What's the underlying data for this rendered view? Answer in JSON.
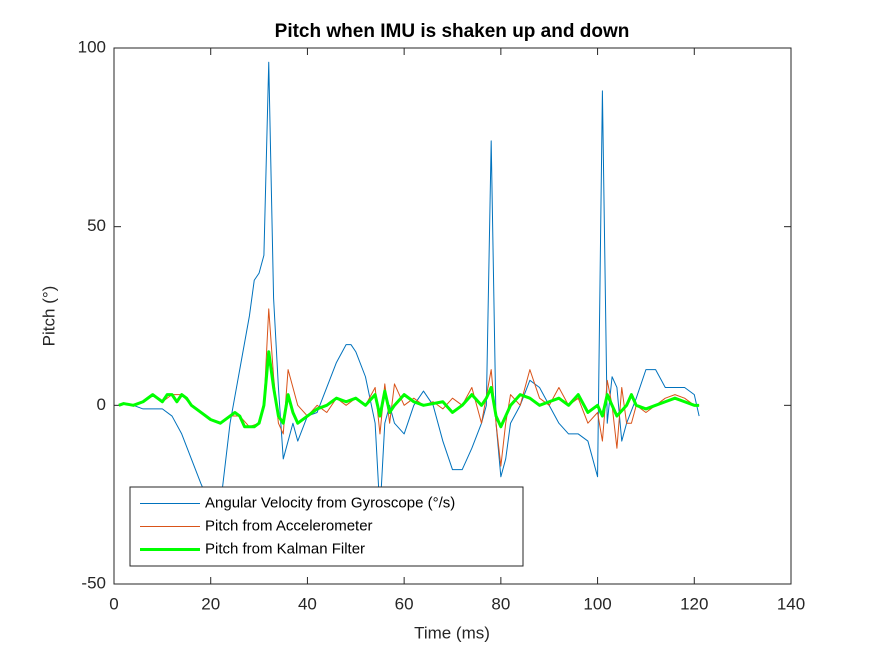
{
  "chart_data": {
    "type": "line",
    "title": "Pitch when IMU is shaken up and down",
    "x_label": "Time (ms)",
    "y_label": "Pitch (°)",
    "xlim": [
      0,
      140
    ],
    "xticks": [
      0,
      20,
      40,
      60,
      80,
      100,
      120,
      140
    ],
    "ylim": [
      -50,
      100
    ],
    "yticks": [
      -50,
      0,
      50,
      100
    ],
    "grid": false,
    "legend": "lower left",
    "series": [
      {
        "name": "Angular Velocity from Gyroscope (°/s)",
        "color": "#0072BD",
        "width": 1,
        "x": [
          1,
          2,
          4,
          6,
          8,
          10,
          12,
          14,
          16,
          18,
          20,
          21,
          22,
          24,
          26,
          28,
          29,
          30,
          31,
          32,
          33,
          34,
          35,
          36,
          37,
          38,
          40,
          42,
          44,
          46,
          48,
          49,
          50,
          52,
          54,
          55,
          56,
          57,
          58,
          60,
          62,
          64,
          66,
          68,
          70,
          72,
          74,
          76,
          77,
          78,
          79,
          80,
          81,
          82,
          84,
          86,
          88,
          90,
          92,
          94,
          96,
          98,
          100,
          101,
          102,
          103,
          104,
          105,
          106,
          108,
          110,
          112,
          114,
          116,
          118,
          120,
          121
        ],
        "values": [
          0,
          0.5,
          0,
          -1,
          -1,
          -1,
          -3,
          -8,
          -15,
          -22,
          -28,
          -35,
          -28,
          -5,
          10,
          25,
          35,
          37,
          42,
          96,
          30,
          5,
          -15,
          -10,
          -5,
          -10,
          -3,
          -2,
          5,
          12,
          17,
          17,
          15,
          8,
          -5,
          -30,
          -5,
          0,
          -5,
          -8,
          0,
          4,
          0,
          -10,
          -18,
          -18,
          -12,
          -5,
          0,
          74,
          -5,
          -20,
          -15,
          -5,
          0,
          7,
          5,
          0,
          -5,
          -8,
          -8,
          -10,
          -20,
          88,
          -5,
          8,
          5,
          -10,
          -5,
          2,
          10,
          10,
          5,
          5,
          5,
          3,
          -3
        ]
      },
      {
        "name": "Pitch from Accelerometer",
        "color": "#D95319",
        "width": 1,
        "x": [
          1,
          2,
          4,
          6,
          8,
          10,
          12,
          14,
          16,
          18,
          20,
          22,
          24,
          26,
          28,
          30,
          31,
          32,
          33,
          34,
          35,
          36,
          38,
          40,
          42,
          44,
          46,
          48,
          50,
          52,
          54,
          55,
          56,
          57,
          58,
          60,
          62,
          64,
          66,
          68,
          70,
          72,
          74,
          76,
          78,
          79,
          80,
          81,
          82,
          84,
          86,
          88,
          90,
          92,
          94,
          96,
          98,
          100,
          101,
          102,
          103,
          104,
          105,
          106,
          107,
          108,
          110,
          112,
          114,
          116,
          118,
          120,
          121
        ],
        "values": [
          0,
          0.5,
          0,
          1,
          3,
          1,
          3,
          3,
          0,
          -2,
          -4,
          -5,
          -3,
          -3,
          -6,
          -5,
          0,
          27,
          8,
          -5,
          -8,
          10,
          0,
          -3,
          0,
          -2,
          2,
          0,
          2,
          0,
          5,
          -8,
          6,
          -5,
          6,
          0,
          2,
          0,
          1,
          -1,
          2,
          0,
          5,
          -5,
          10,
          -5,
          -17,
          -5,
          3,
          0,
          10,
          2,
          0,
          5,
          0,
          2,
          -5,
          -2,
          -10,
          7,
          0,
          -12,
          5,
          -5,
          -5,
          0,
          -2,
          0,
          2,
          3,
          2,
          0,
          0
        ]
      },
      {
        "name": "Pitch from Kalman Filter",
        "color": "#00FF00",
        "width": 3,
        "x": [
          1,
          2,
          4,
          6,
          8,
          9,
          10,
          11,
          12,
          13,
          14,
          15,
          16,
          18,
          20,
          22,
          24,
          25,
          26,
          27,
          29,
          30,
          31,
          32,
          33,
          34,
          35,
          36,
          37,
          38,
          40,
          42,
          44,
          46,
          48,
          50,
          52,
          54,
          55,
          56,
          57,
          58,
          60,
          62,
          64,
          66,
          68,
          70,
          72,
          74,
          76,
          77,
          78,
          79,
          80,
          82,
          84,
          86,
          88,
          90,
          92,
          94,
          96,
          98,
          100,
          101,
          102,
          103,
          104,
          106,
          107,
          108,
          110,
          112,
          114,
          116,
          118,
          120,
          121
        ],
        "values": [
          0,
          0.5,
          0,
          1,
          3,
          2,
          1,
          3,
          3,
          1,
          3,
          2,
          0,
          -2,
          -4,
          -5,
          -3,
          -2,
          -3,
          -6,
          -6,
          -5,
          0,
          15,
          5,
          -3,
          -5,
          3,
          -2,
          -5,
          -3,
          -1,
          0,
          2,
          1,
          2,
          0,
          3,
          -3,
          4,
          -2,
          0,
          3,
          1,
          0,
          0.5,
          1,
          -2,
          0,
          3,
          0,
          2,
          5,
          -3,
          -6,
          0,
          3,
          2,
          0,
          1,
          2,
          0,
          3,
          -2,
          0,
          -3,
          3,
          0,
          -3,
          0,
          3,
          0,
          -1,
          0,
          1,
          2,
          1,
          0,
          0
        ]
      }
    ]
  }
}
